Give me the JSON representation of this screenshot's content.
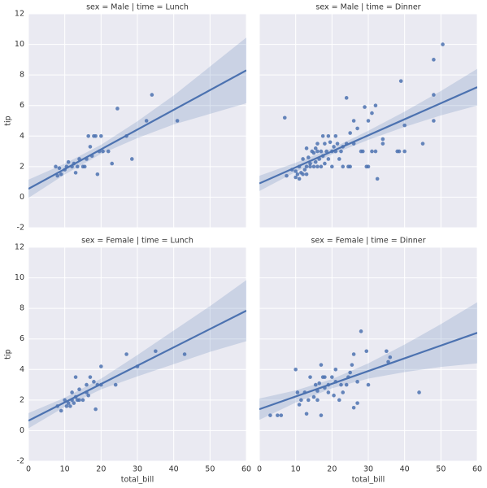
{
  "chart_data": [
    {
      "type": "scatter",
      "title": "sex = Male | time = Lunch",
      "ylabel": "tip",
      "color": "#4c72b0",
      "xlim": [
        0,
        60
      ],
      "ylim": [
        -2,
        12
      ],
      "xticks": [
        0,
        10,
        20,
        30,
        40,
        50,
        60
      ],
      "yticks": [
        -2,
        0,
        2,
        4,
        6,
        8,
        10,
        12
      ],
      "show_xticklabels": false,
      "show_yticklabels": true,
      "grid": true,
      "x": [
        7.5,
        8,
        8.5,
        9,
        10,
        10.5,
        11,
        12,
        12.5,
        13,
        13.5,
        14,
        15,
        15.5,
        16,
        16.5,
        17,
        17.5,
        18,
        18.5,
        19,
        19.5,
        20,
        20.5,
        22,
        23,
        24.5,
        27,
        28.5,
        32.5,
        34,
        41
      ],
      "y": [
        2,
        1.4,
        1.9,
        1.5,
        1.8,
        2,
        2.3,
        2,
        2.2,
        1.6,
        2,
        2.5,
        2,
        2,
        2.5,
        4,
        3.3,
        2.7,
        4,
        4,
        1.5,
        3,
        4,
        3,
        3,
        2.2,
        5.8,
        4,
        2.5,
        5,
        6.7,
        5
      ],
      "fit": {
        "x": [
          0,
          60
        ],
        "y": [
          0.55,
          8.3
        ]
      },
      "ci": {
        "x": [
          0,
          10,
          20,
          30,
          40,
          50,
          60
        ],
        "lower": [
          -0.05,
          1.49,
          2.83,
          3.87,
          4.76,
          5.45,
          6.15
        ],
        "upper": [
          1.15,
          2.19,
          3.43,
          4.97,
          6.66,
          8.55,
          10.45
        ]
      }
    },
    {
      "type": "scatter",
      "title": "sex = Male | time = Dinner",
      "color": "#4c72b0",
      "xlim": [
        0,
        60
      ],
      "ylim": [
        -2,
        12
      ],
      "xticks": [
        0,
        10,
        20,
        30,
        40,
        50,
        60
      ],
      "yticks": [
        -2,
        0,
        2,
        4,
        6,
        8,
        10,
        12
      ],
      "show_xticklabels": false,
      "show_yticklabels": false,
      "grid": true,
      "x": [
        7,
        7.5,
        9,
        10,
        10,
        10.5,
        11,
        11,
        11.5,
        12,
        12,
        12.5,
        13,
        13,
        13,
        13.5,
        14,
        14,
        14.5,
        15,
        15,
        15.5,
        15.5,
        16,
        16,
        16,
        16.5,
        17,
        17,
        17.5,
        17.5,
        18,
        18,
        18.5,
        19,
        19,
        19.5,
        20,
        20,
        20.5,
        21,
        21,
        21.5,
        22,
        22.5,
        23,
        23,
        24,
        24,
        24.5,
        25,
        25,
        26,
        26,
        27,
        28,
        28.5,
        29,
        29.5,
        30,
        30,
        31,
        31,
        32,
        32,
        32.5,
        34,
        34,
        38,
        38.5,
        39,
        40,
        40,
        45,
        48,
        48,
        48,
        50.5
      ],
      "y": [
        5.2,
        1.4,
        1.8,
        1.3,
        1.7,
        1.5,
        2,
        1.2,
        1.6,
        1.5,
        2.5,
        1.8,
        2,
        1.5,
        3.2,
        2.6,
        2,
        2.2,
        3,
        2,
        2.9,
        3.2,
        2.3,
        2,
        3,
        3.5,
        2.5,
        2,
        3,
        4,
        2.7,
        3.5,
        2.2,
        3,
        4,
        2.5,
        3.6,
        3,
        2,
        3.3,
        3,
        4,
        3.5,
        2.5,
        3,
        3.3,
        2,
        3.5,
        6.5,
        2,
        4.2,
        2,
        3.5,
        5,
        4.5,
        3,
        3,
        5.9,
        2,
        5,
        2,
        3,
        5.5,
        3,
        6,
        1.2,
        3.5,
        3.8,
        3,
        3,
        7.6,
        3,
        4.7,
        3.5,
        9,
        5,
        6.7,
        10
      ],
      "fit": {
        "x": [
          0,
          60
        ],
        "y": [
          0.9,
          7.2
        ]
      },
      "ci": {
        "x": [
          0,
          10,
          20,
          30,
          40,
          50,
          60
        ],
        "lower": [
          0.4,
          1.65,
          2.8,
          3.75,
          4.6,
          5.35,
          6.0
        ],
        "upper": [
          1.4,
          2.25,
          3.2,
          4.35,
          5.6,
          6.95,
          8.4
        ]
      }
    },
    {
      "type": "scatter",
      "title": "sex = Female | time = Lunch",
      "xlabel": "total_bill",
      "ylabel": "tip",
      "color": "#4c72b0",
      "xlim": [
        0,
        60
      ],
      "ylim": [
        -2,
        12
      ],
      "xticks": [
        0,
        10,
        20,
        30,
        40,
        50,
        60
      ],
      "yticks": [
        -2,
        0,
        2,
        4,
        6,
        8,
        10,
        12
      ],
      "show_xticklabels": true,
      "show_yticklabels": true,
      "grid": true,
      "x": [
        8,
        9,
        10,
        10.5,
        11,
        11.5,
        12,
        12,
        12.5,
        13,
        13,
        13.5,
        14,
        14,
        15,
        16,
        16,
        16.5,
        17,
        18,
        18.5,
        19,
        20,
        20,
        24,
        27,
        30,
        35,
        43
      ],
      "y": [
        1.6,
        1.3,
        2,
        1.6,
        1.8,
        1.6,
        2,
        2.5,
        1.8,
        2.2,
        3.5,
        2,
        2.7,
        2,
        2,
        2.5,
        3,
        2.3,
        3.5,
        3.2,
        1.4,
        3,
        4.2,
        3,
        3,
        5,
        4.2,
        5.2,
        5
      ],
      "fit": {
        "x": [
          0,
          60
        ],
        "y": [
          0.65,
          7.85
        ]
      },
      "ci": {
        "x": [
          0,
          10,
          20,
          30,
          40,
          50,
          60
        ],
        "lower": [
          0.15,
          1.55,
          2.7,
          3.55,
          4.35,
          5.15,
          5.85
        ],
        "upper": [
          1.15,
          2.15,
          3.4,
          4.95,
          6.55,
          8.15,
          9.85
        ]
      }
    },
    {
      "type": "scatter",
      "title": "sex = Female | time = Dinner",
      "xlabel": "total_bill",
      "color": "#4c72b0",
      "xlim": [
        0,
        60
      ],
      "ylim": [
        -2,
        12
      ],
      "xticks": [
        0,
        10,
        20,
        30,
        40,
        50,
        60
      ],
      "yticks": [
        -2,
        0,
        2,
        4,
        6,
        8,
        10,
        12
      ],
      "show_xticklabels": true,
      "show_yticklabels": false,
      "grid": true,
      "x": [
        3,
        5,
        6,
        10,
        10.5,
        11,
        11.5,
        12.5,
        13,
        13.5,
        14,
        15,
        15.5,
        16,
        16,
        16.5,
        17,
        17,
        17.5,
        18,
        18,
        19,
        19,
        20,
        20.5,
        21,
        21,
        22,
        22.5,
        23,
        24,
        24.5,
        25,
        25.5,
        26,
        26,
        27,
        27,
        28,
        29.5,
        30,
        35,
        35.5,
        36,
        44
      ],
      "y": [
        1,
        1,
        1,
        4,
        2.5,
        1.7,
        2,
        2.5,
        1.1,
        2,
        3.5,
        2.2,
        3,
        2.6,
        2,
        3.1,
        4.3,
        1,
        3.5,
        2.8,
        3.5,
        3,
        2.5,
        3.5,
        2.3,
        3.2,
        4,
        2,
        3,
        2.5,
        3,
        3.5,
        3.8,
        4.3,
        5,
        1.5,
        3.2,
        1.8,
        6.5,
        5.2,
        3,
        5.2,
        4.5,
        4.8,
        2.5
      ],
      "fit": {
        "x": [
          0,
          60
        ],
        "y": [
          1.4,
          6.4
        ]
      },
      "ci": {
        "x": [
          0,
          10,
          20,
          30,
          40,
          50,
          60
        ],
        "lower": [
          0.7,
          1.83,
          2.77,
          3.4,
          3.83,
          4.17,
          4.4
        ],
        "upper": [
          2.1,
          2.63,
          3.37,
          4.4,
          5.63,
          6.97,
          8.4
        ]
      }
    }
  ]
}
